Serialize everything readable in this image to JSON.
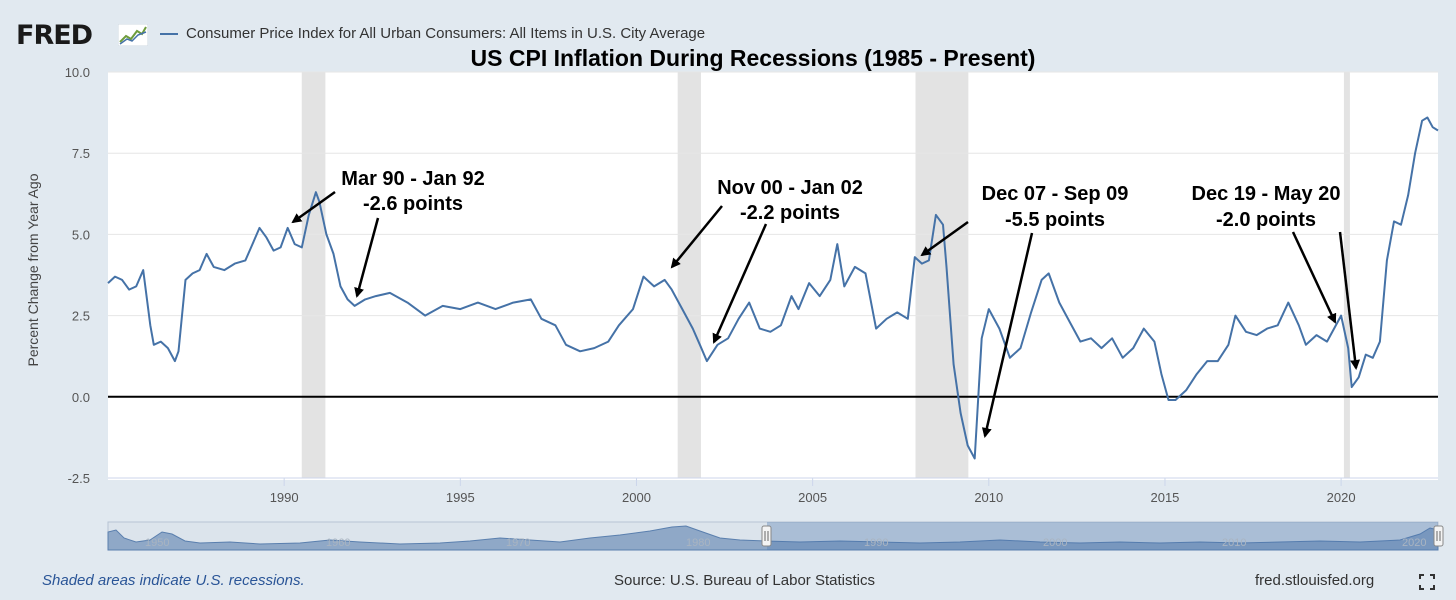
{
  "brand": {
    "name": "FRED",
    "icon": "line-graph-icon"
  },
  "legend": {
    "label": "Consumer Price Index for All Urban Consumers: All Items in U.S. City Average",
    "color": "#4572a7"
  },
  "footer": {
    "note": "Shaded areas indicate U.S. recessions.",
    "source": "Source: U.S. Bureau of Labor Statistics",
    "site": "fred.stlouisfed.org",
    "fullscreen_icon": "expand-icon"
  },
  "navigator": {
    "tick_labels": [
      "1950",
      "1960",
      "1970",
      "1980",
      "1990",
      "2000",
      "2010",
      "2020"
    ]
  },
  "chart_data": {
    "type": "line",
    "title": "US CPI Inflation During Recessions (1985 - Present)",
    "xlabel": "",
    "ylabel": "Percent Change from Year Ago",
    "xlim": [
      1985.0,
      2022.75
    ],
    "ylim": [
      -2.5,
      10.0
    ],
    "y_ticks": [
      -2.5,
      0.0,
      2.5,
      5.0,
      7.5,
      10.0
    ],
    "y_tick_labels": [
      "-2.5",
      "0.0",
      "2.5",
      "5.0",
      "7.5",
      "10.0"
    ],
    "x_ticks": [
      1990,
      1995,
      2000,
      2005,
      2010,
      2015,
      2020
    ],
    "x_tick_labels": [
      "1990",
      "1995",
      "2000",
      "2005",
      "2010",
      "2015",
      "2020"
    ],
    "grid": true,
    "reference_line": 0.0,
    "recessions": [
      [
        1990.5,
        1991.17
      ],
      [
        2001.17,
        2001.83
      ],
      [
        2007.92,
        2009.42
      ],
      [
        2020.08,
        2020.25
      ]
    ],
    "series": [
      {
        "name": "Consumer Price Index for All Urban Consumers: All Items in U.S. City Average",
        "color": "#4572a7",
        "x": [
          1985.0,
          1985.2,
          1985.4,
          1985.6,
          1985.8,
          1986.0,
          1986.2,
          1986.3,
          1986.5,
          1986.7,
          1986.9,
          1987.0,
          1987.2,
          1987.4,
          1987.6,
          1987.8,
          1988.0,
          1988.3,
          1988.6,
          1988.9,
          1989.1,
          1989.3,
          1989.5,
          1989.7,
          1989.9,
          1990.1,
          1990.3,
          1990.5,
          1990.7,
          1990.9,
          1991.0,
          1991.2,
          1991.4,
          1991.6,
          1991.8,
          1992.0,
          1992.3,
          1992.6,
          1993.0,
          1993.5,
          1994.0,
          1994.5,
          1995.0,
          1995.5,
          1996.0,
          1996.5,
          1997.0,
          1997.3,
          1997.7,
          1998.0,
          1998.4,
          1998.8,
          1999.2,
          1999.5,
          1999.9,
          2000.2,
          2000.5,
          2000.8,
          2001.0,
          2001.3,
          2001.6,
          2001.8,
          2002.0,
          2002.3,
          2002.6,
          2002.9,
          2003.2,
          2003.5,
          2003.8,
          2004.1,
          2004.4,
          2004.6,
          2004.9,
          2005.2,
          2005.5,
          2005.7,
          2005.9,
          2006.2,
          2006.5,
          2006.8,
          2007.1,
          2007.4,
          2007.7,
          2007.9,
          2008.1,
          2008.3,
          2008.5,
          2008.7,
          2008.8,
          2009.0,
          2009.2,
          2009.4,
          2009.6,
          2009.8,
          2010.0,
          2010.3,
          2010.6,
          2010.9,
          2011.2,
          2011.5,
          2011.7,
          2012.0,
          2012.3,
          2012.6,
          2012.9,
          2013.2,
          2013.5,
          2013.8,
          2014.1,
          2014.4,
          2014.7,
          2014.9,
          2015.1,
          2015.3,
          2015.6,
          2015.9,
          2016.2,
          2016.5,
          2016.8,
          2017.0,
          2017.3,
          2017.6,
          2017.9,
          2018.2,
          2018.5,
          2018.8,
          2019.0,
          2019.3,
          2019.6,
          2019.9,
          2020.0,
          2020.2,
          2020.3,
          2020.5,
          2020.7,
          2020.9,
          2021.1,
          2021.3,
          2021.5,
          2021.7,
          2021.9,
          2022.1,
          2022.3,
          2022.45,
          2022.6,
          2022.75
        ],
        "values": [
          3.5,
          3.7,
          3.6,
          3.3,
          3.4,
          3.9,
          2.2,
          1.6,
          1.7,
          1.5,
          1.1,
          1.4,
          3.6,
          3.8,
          3.9,
          4.4,
          4.0,
          3.9,
          4.1,
          4.2,
          4.7,
          5.2,
          4.9,
          4.5,
          4.6,
          5.2,
          4.7,
          4.6,
          5.6,
          6.3,
          6.0,
          5.0,
          4.4,
          3.4,
          3.0,
          2.8,
          3.0,
          3.1,
          3.2,
          2.9,
          2.5,
          2.8,
          2.7,
          2.9,
          2.7,
          2.9,
          3.0,
          2.4,
          2.2,
          1.6,
          1.4,
          1.5,
          1.7,
          2.2,
          2.7,
          3.7,
          3.4,
          3.6,
          3.3,
          2.7,
          2.1,
          1.6,
          1.1,
          1.6,
          1.8,
          2.4,
          2.9,
          2.1,
          2.0,
          2.2,
          3.1,
          2.7,
          3.5,
          3.1,
          3.6,
          4.7,
          3.4,
          4.0,
          3.8,
          2.1,
          2.4,
          2.6,
          2.4,
          4.3,
          4.1,
          4.2,
          5.6,
          5.3,
          4.0,
          1.0,
          -0.5,
          -1.5,
          -1.9,
          1.8,
          2.7,
          2.1,
          1.2,
          1.5,
          2.6,
          3.6,
          3.8,
          2.9,
          2.3,
          1.7,
          1.8,
          1.5,
          1.8,
          1.2,
          1.5,
          2.1,
          1.7,
          0.7,
          -0.1,
          -0.1,
          0.2,
          0.7,
          1.1,
          1.1,
          1.6,
          2.5,
          2.0,
          1.9,
          2.1,
          2.2,
          2.9,
          2.2,
          1.6,
          1.9,
          1.7,
          2.3,
          2.5,
          1.5,
          0.3,
          0.6,
          1.3,
          1.2,
          1.7,
          4.2,
          5.4,
          5.3,
          6.2,
          7.5,
          8.5,
          8.6,
          8.3,
          8.2
        ]
      }
    ],
    "annotations": [
      {
        "line1": "Mar 90 - Jan 92",
        "line2": "-2.6 points"
      },
      {
        "line1": "Nov 00 - Jan 02",
        "line2": "-2.2 points"
      },
      {
        "line1": "Dec 07 - Sep 09",
        "line2": "-5.5 points"
      },
      {
        "line1": "Dec 19 - May 20",
        "line2": "-2.0 points"
      }
    ]
  }
}
